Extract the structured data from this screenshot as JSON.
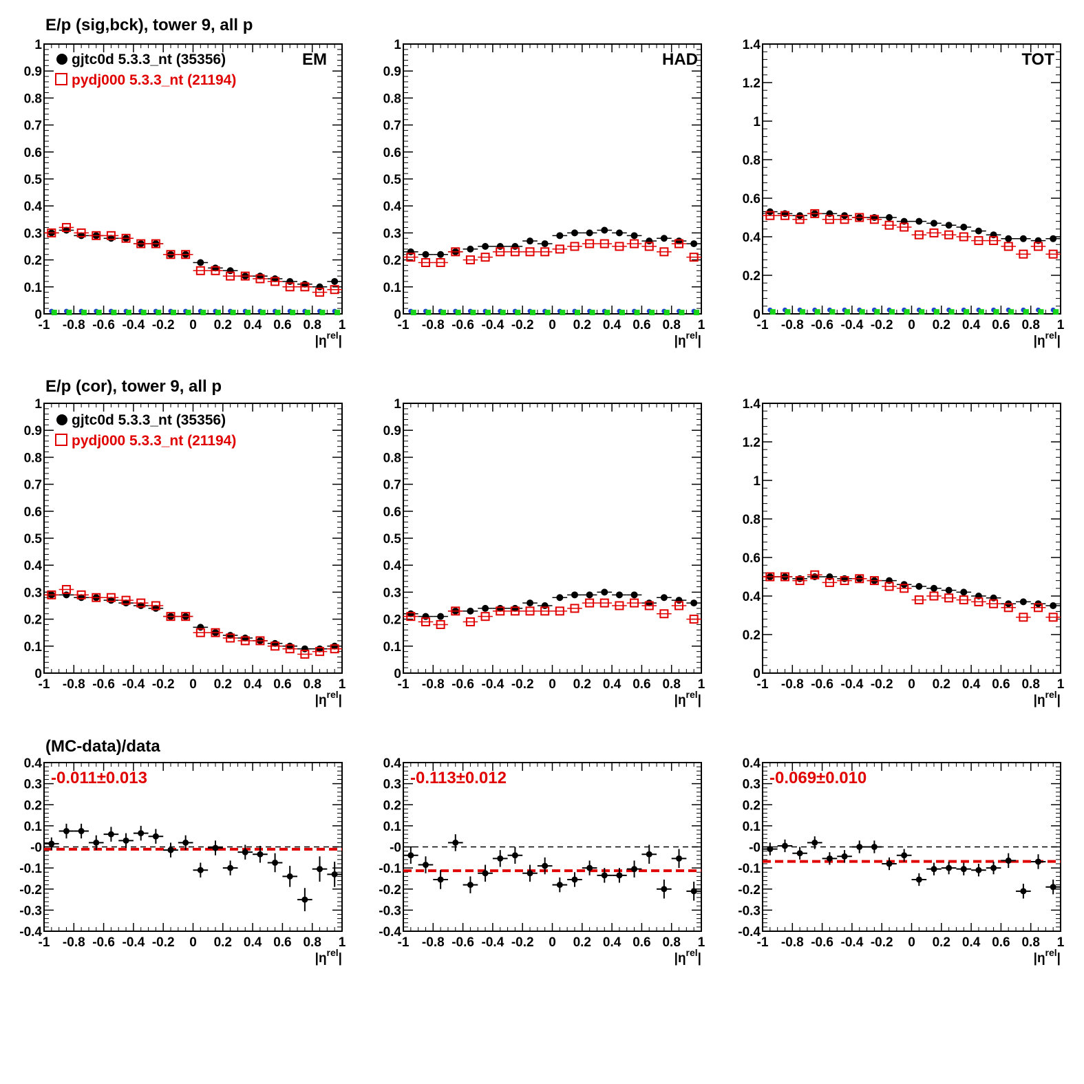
{
  "titles": {
    "row1": "E/p (sig,bck), tower 9, all p",
    "row2": "E/p (cor), tower 9, all p",
    "row3": "(MC-data)/data"
  },
  "legend": {
    "data_label": "gjtc0d 5.3.3_nt (35356)",
    "mc_label": "pydj000 5.3.3_nt (21194)"
  },
  "panel_labels": {
    "em": "EM",
    "had": "HAD",
    "tot": "TOT"
  },
  "xlabel_base": "|η",
  "xlabel_sup": "rel",
  "xlabel_end": "|",
  "colors": {
    "data": "#000000",
    "mc": "#e00000",
    "bkg_a": "#1f3fd0",
    "bkg_b": "#18d418",
    "fit_line": "#e00000",
    "zero_line": "#000000"
  },
  "chart_data": [
    {
      "id": "em_sig",
      "type": "scatter",
      "row": 0,
      "col": 0,
      "xlim": [
        -1,
        1
      ],
      "ylim": [
        0,
        1
      ],
      "yticks": [
        "0",
        "0.1",
        "0.2",
        "0.3",
        "0.4",
        "0.5",
        "0.6",
        "0.7",
        "0.8",
        "0.9",
        "1"
      ],
      "xticks": [
        "-1",
        "-0.8",
        "-0.6",
        "-0.4",
        "-0.2",
        "0",
        "0.2",
        "0.4",
        "0.6",
        "0.8",
        "1"
      ],
      "x": [
        -0.95,
        -0.85,
        -0.75,
        -0.65,
        -0.55,
        -0.45,
        -0.35,
        -0.25,
        -0.15,
        -0.05,
        0.05,
        0.15,
        0.25,
        0.35,
        0.45,
        0.55,
        0.65,
        0.75,
        0.85,
        0.95
      ],
      "series": [
        {
          "name": "gjtc0d 5.3.3_nt (35356)",
          "marker": "filled-circle",
          "values": [
            0.3,
            0.31,
            0.29,
            0.29,
            0.28,
            0.28,
            0.26,
            0.26,
            0.22,
            0.22,
            0.19,
            0.17,
            0.16,
            0.14,
            0.14,
            0.13,
            0.12,
            0.11,
            0.1,
            0.12
          ]
        },
        {
          "name": "pydj000 5.3.3_nt (21194)",
          "marker": "open-square",
          "values": [
            0.3,
            0.32,
            0.3,
            0.29,
            0.29,
            0.28,
            0.26,
            0.26,
            0.22,
            0.22,
            0.16,
            0.16,
            0.14,
            0.14,
            0.13,
            0.12,
            0.1,
            0.1,
            0.08,
            0.09
          ]
        },
        {
          "marker": "blue-circle",
          "values": [
            0.01,
            0.01,
            0.01,
            0.01,
            0.01,
            0.01,
            0.01,
            0.01,
            0.01,
            0.01,
            0.01,
            0.01,
            0.01,
            0.01,
            0.01,
            0.01,
            0.01,
            0.01,
            0.01,
            0.01
          ]
        },
        {
          "marker": "green-square",
          "values": [
            0.005,
            0.005,
            0.005,
            0.005,
            0.005,
            0.005,
            0.005,
            0.005,
            0.005,
            0.005,
            0.005,
            0.005,
            0.005,
            0.005,
            0.005,
            0.005,
            0.005,
            0.005,
            0.005,
            0.005
          ]
        }
      ]
    },
    {
      "id": "had_sig",
      "type": "scatter",
      "row": 0,
      "col": 1,
      "xlim": [
        -1,
        1
      ],
      "ylim": [
        0,
        1
      ],
      "yticks": [
        "0",
        "0.1",
        "0.2",
        "0.3",
        "0.4",
        "0.5",
        "0.6",
        "0.7",
        "0.8",
        "0.9",
        "1"
      ],
      "xticks": [
        "-1",
        "-0.8",
        "-0.6",
        "-0.4",
        "-0.2",
        "0",
        "0.2",
        "0.4",
        "0.6",
        "0.8",
        "1"
      ],
      "x": [
        -0.95,
        -0.85,
        -0.75,
        -0.65,
        -0.55,
        -0.45,
        -0.35,
        -0.25,
        -0.15,
        -0.05,
        0.05,
        0.15,
        0.25,
        0.35,
        0.45,
        0.55,
        0.65,
        0.75,
        0.85,
        0.95
      ],
      "series": [
        {
          "name": "gjtc0d 5.3.3_nt (35356)",
          "marker": "filled-circle",
          "values": [
            0.23,
            0.22,
            0.22,
            0.23,
            0.24,
            0.25,
            0.25,
            0.25,
            0.27,
            0.26,
            0.29,
            0.3,
            0.3,
            0.31,
            0.3,
            0.29,
            0.27,
            0.28,
            0.27,
            0.26
          ]
        },
        {
          "name": "pydj000 5.3.3_nt (21194)",
          "marker": "open-square",
          "values": [
            0.21,
            0.19,
            0.19,
            0.23,
            0.2,
            0.21,
            0.23,
            0.23,
            0.23,
            0.23,
            0.24,
            0.25,
            0.26,
            0.26,
            0.25,
            0.26,
            0.25,
            0.23,
            0.26,
            0.21
          ]
        },
        {
          "marker": "blue-circle",
          "values": [
            0.01,
            0.01,
            0.01,
            0.01,
            0.01,
            0.01,
            0.01,
            0.01,
            0.01,
            0.01,
            0.01,
            0.01,
            0.01,
            0.01,
            0.01,
            0.01,
            0.01,
            0.01,
            0.01,
            0.01
          ]
        },
        {
          "marker": "green-square",
          "values": [
            0.005,
            0.005,
            0.005,
            0.005,
            0.005,
            0.005,
            0.005,
            0.005,
            0.005,
            0.005,
            0.005,
            0.005,
            0.005,
            0.005,
            0.005,
            0.005,
            0.005,
            0.005,
            0.005,
            0.005
          ]
        }
      ]
    },
    {
      "id": "tot_sig",
      "type": "scatter",
      "row": 0,
      "col": 2,
      "xlim": [
        -1,
        1
      ],
      "ylim": [
        0,
        1.4
      ],
      "yticks": [
        "0",
        "0.2",
        "0.4",
        "0.6",
        "0.8",
        "1",
        "1.2",
        "1.4"
      ],
      "xticks": [
        "-1",
        "-0.8",
        "-0.6",
        "-0.4",
        "-0.2",
        "0",
        "0.2",
        "0.4",
        "0.6",
        "0.8",
        "1"
      ],
      "x": [
        -0.95,
        -0.85,
        -0.75,
        -0.65,
        -0.55,
        -0.45,
        -0.35,
        -0.25,
        -0.15,
        -0.05,
        0.05,
        0.15,
        0.25,
        0.35,
        0.45,
        0.55,
        0.65,
        0.75,
        0.85,
        0.95
      ],
      "series": [
        {
          "name": "gjtc0d 5.3.3_nt (35356)",
          "marker": "filled-circle",
          "values": [
            0.53,
            0.52,
            0.51,
            0.52,
            0.52,
            0.51,
            0.5,
            0.5,
            0.5,
            0.48,
            0.48,
            0.47,
            0.46,
            0.45,
            0.43,
            0.41,
            0.39,
            0.39,
            0.38,
            0.39
          ]
        },
        {
          "name": "pydj000 5.3.3_nt (21194)",
          "marker": "open-square",
          "values": [
            0.51,
            0.51,
            0.49,
            0.52,
            0.49,
            0.49,
            0.5,
            0.49,
            0.46,
            0.45,
            0.41,
            0.42,
            0.41,
            0.4,
            0.38,
            0.38,
            0.35,
            0.31,
            0.35,
            0.31
          ]
        },
        {
          "marker": "blue-circle",
          "values": [
            0.02,
            0.02,
            0.02,
            0.02,
            0.02,
            0.02,
            0.02,
            0.02,
            0.02,
            0.02,
            0.02,
            0.02,
            0.02,
            0.02,
            0.02,
            0.02,
            0.02,
            0.02,
            0.02,
            0.02
          ]
        },
        {
          "marker": "green-square",
          "values": [
            0.01,
            0.01,
            0.01,
            0.01,
            0.01,
            0.01,
            0.01,
            0.01,
            0.01,
            0.01,
            0.01,
            0.01,
            0.01,
            0.01,
            0.01,
            0.01,
            0.01,
            0.01,
            0.01,
            0.01
          ]
        }
      ]
    },
    {
      "id": "em_cor",
      "type": "scatter",
      "row": 1,
      "col": 0,
      "xlim": [
        -1,
        1
      ],
      "ylim": [
        0,
        1
      ],
      "yticks": [
        "0",
        "0.1",
        "0.2",
        "0.3",
        "0.4",
        "0.5",
        "0.6",
        "0.7",
        "0.8",
        "0.9",
        "1"
      ],
      "xticks": [
        "-1",
        "-0.8",
        "-0.6",
        "-0.4",
        "-0.2",
        "0",
        "0.2",
        "0.4",
        "0.6",
        "0.8",
        "1"
      ],
      "x": [
        -0.95,
        -0.85,
        -0.75,
        -0.65,
        -0.55,
        -0.45,
        -0.35,
        -0.25,
        -0.15,
        -0.05,
        0.05,
        0.15,
        0.25,
        0.35,
        0.45,
        0.55,
        0.65,
        0.75,
        0.85,
        0.95
      ],
      "series": [
        {
          "name": "gjtc0d 5.3.3_nt (35356)",
          "marker": "filled-circle",
          "values": [
            0.29,
            0.29,
            0.28,
            0.28,
            0.27,
            0.26,
            0.25,
            0.24,
            0.21,
            0.21,
            0.17,
            0.15,
            0.14,
            0.13,
            0.12,
            0.11,
            0.1,
            0.09,
            0.09,
            0.1
          ]
        },
        {
          "name": "pydj000 5.3.3_nt (21194)",
          "marker": "open-square",
          "values": [
            0.29,
            0.31,
            0.29,
            0.28,
            0.28,
            0.27,
            0.26,
            0.25,
            0.21,
            0.21,
            0.15,
            0.15,
            0.13,
            0.12,
            0.12,
            0.1,
            0.09,
            0.07,
            0.08,
            0.09
          ]
        }
      ]
    },
    {
      "id": "had_cor",
      "type": "scatter",
      "row": 1,
      "col": 1,
      "xlim": [
        -1,
        1
      ],
      "ylim": [
        0,
        1
      ],
      "yticks": [
        "0",
        "0.1",
        "0.2",
        "0.3",
        "0.4",
        "0.5",
        "0.6",
        "0.7",
        "0.8",
        "0.9",
        "1"
      ],
      "xticks": [
        "-1",
        "-0.8",
        "-0.6",
        "-0.4",
        "-0.2",
        "0",
        "0.2",
        "0.4",
        "0.6",
        "0.8",
        "1"
      ],
      "x": [
        -0.95,
        -0.85,
        -0.75,
        -0.65,
        -0.55,
        -0.45,
        -0.35,
        -0.25,
        -0.15,
        -0.05,
        0.05,
        0.15,
        0.25,
        0.35,
        0.45,
        0.55,
        0.65,
        0.75,
        0.85,
        0.95
      ],
      "series": [
        {
          "name": "gjtc0d 5.3.3_nt (35356)",
          "marker": "filled-circle",
          "values": [
            0.22,
            0.21,
            0.21,
            0.23,
            0.23,
            0.24,
            0.24,
            0.24,
            0.26,
            0.25,
            0.28,
            0.29,
            0.29,
            0.3,
            0.29,
            0.29,
            0.26,
            0.28,
            0.27,
            0.26
          ]
        },
        {
          "name": "pydj000 5.3.3_nt (21194)",
          "marker": "open-square",
          "values": [
            0.21,
            0.19,
            0.18,
            0.23,
            0.19,
            0.21,
            0.23,
            0.23,
            0.23,
            0.23,
            0.23,
            0.24,
            0.26,
            0.26,
            0.25,
            0.26,
            0.25,
            0.22,
            0.25,
            0.2
          ]
        }
      ]
    },
    {
      "id": "tot_cor",
      "type": "scatter",
      "row": 1,
      "col": 2,
      "xlim": [
        -1,
        1
      ],
      "ylim": [
        0,
        1.4
      ],
      "yticks": [
        "0",
        "0.2",
        "0.4",
        "0.6",
        "0.8",
        "1",
        "1.2",
        "1.4"
      ],
      "xticks": [
        "-1",
        "-0.8",
        "-0.6",
        "-0.4",
        "-0.2",
        "0",
        "0.2",
        "0.4",
        "0.6",
        "0.8",
        "1"
      ],
      "x": [
        -0.95,
        -0.85,
        -0.75,
        -0.65,
        -0.55,
        -0.45,
        -0.35,
        -0.25,
        -0.15,
        -0.05,
        0.05,
        0.15,
        0.25,
        0.35,
        0.45,
        0.55,
        0.65,
        0.75,
        0.85,
        0.95
      ],
      "series": [
        {
          "name": "gjtc0d 5.3.3_nt (35356)",
          "marker": "filled-circle",
          "values": [
            0.5,
            0.5,
            0.49,
            0.5,
            0.5,
            0.49,
            0.49,
            0.48,
            0.48,
            0.46,
            0.45,
            0.44,
            0.43,
            0.42,
            0.4,
            0.39,
            0.36,
            0.37,
            0.36,
            0.35
          ]
        },
        {
          "name": "pydj000 5.3.3_nt (21194)",
          "marker": "open-square",
          "values": [
            0.5,
            0.5,
            0.48,
            0.51,
            0.47,
            0.48,
            0.49,
            0.48,
            0.45,
            0.44,
            0.38,
            0.4,
            0.39,
            0.38,
            0.37,
            0.36,
            0.34,
            0.29,
            0.34,
            0.29
          ]
        }
      ]
    },
    {
      "id": "em_ratio",
      "type": "scatter",
      "row": 2,
      "col": 0,
      "xlim": [
        -1,
        1
      ],
      "ylim": [
        -0.4,
        0.4
      ],
      "yticks": [
        "-0.4",
        "-0.3",
        "-0.2",
        "-0.1",
        "-0",
        "0.1",
        "0.2",
        "0.3",
        "0.4"
      ],
      "xticks": [
        "-1",
        "-0.8",
        "-0.6",
        "-0.4",
        "-0.2",
        "0",
        "0.2",
        "0.4",
        "0.6",
        "0.8",
        "1"
      ],
      "fit_text": "-0.011±0.013",
      "fit_value": -0.011,
      "x": [
        -0.95,
        -0.85,
        -0.75,
        -0.65,
        -0.55,
        -0.45,
        -0.35,
        -0.25,
        -0.15,
        -0.05,
        0.05,
        0.15,
        0.25,
        0.35,
        0.45,
        0.55,
        0.65,
        0.75,
        0.85,
        0.95
      ],
      "values": [
        0.015,
        0.075,
        0.075,
        0.02,
        0.06,
        0.03,
        0.065,
        0.05,
        -0.015,
        0.02,
        -0.11,
        -0.005,
        -0.1,
        -0.025,
        -0.035,
        -0.075,
        -0.14,
        -0.25,
        -0.105,
        -0.13
      ],
      "errors": [
        0.03,
        0.035,
        0.035,
        0.035,
        0.035,
        0.035,
        0.035,
        0.035,
        0.035,
        0.035,
        0.035,
        0.035,
        0.035,
        0.035,
        0.04,
        0.045,
        0.05,
        0.055,
        0.06,
        0.06
      ]
    },
    {
      "id": "had_ratio",
      "type": "scatter",
      "row": 2,
      "col": 1,
      "xlim": [
        -1,
        1
      ],
      "ylim": [
        -0.4,
        0.4
      ],
      "yticks": [
        "-0.4",
        "-0.3",
        "-0.2",
        "-0.1",
        "-0",
        "0.1",
        "0.2",
        "0.3",
        "0.4"
      ],
      "xticks": [
        "-1",
        "-0.8",
        "-0.6",
        "-0.4",
        "-0.2",
        "0",
        "0.2",
        "0.4",
        "0.6",
        "0.8",
        "1"
      ],
      "fit_text": "-0.113±0.012",
      "fit_value": -0.113,
      "x": [
        -0.95,
        -0.85,
        -0.75,
        -0.65,
        -0.55,
        -0.45,
        -0.35,
        -0.25,
        -0.15,
        -0.05,
        0.05,
        0.15,
        0.25,
        0.35,
        0.45,
        0.55,
        0.65,
        0.75,
        0.85,
        0.95
      ],
      "values": [
        -0.04,
        -0.085,
        -0.155,
        0.02,
        -0.18,
        -0.125,
        -0.055,
        -0.04,
        -0.125,
        -0.09,
        -0.18,
        -0.155,
        -0.1,
        -0.135,
        -0.135,
        -0.105,
        -0.035,
        -0.2,
        -0.055,
        -0.21
      ],
      "errors": [
        0.04,
        0.04,
        0.045,
        0.04,
        0.04,
        0.04,
        0.04,
        0.04,
        0.04,
        0.04,
        0.035,
        0.035,
        0.035,
        0.035,
        0.035,
        0.04,
        0.045,
        0.045,
        0.045,
        0.045
      ]
    },
    {
      "id": "tot_ratio",
      "type": "scatter",
      "row": 2,
      "col": 2,
      "xlim": [
        -1,
        1
      ],
      "ylim": [
        -0.4,
        0.4
      ],
      "yticks": [
        "-0.4",
        "-0.3",
        "-0.2",
        "-0.1",
        "-0",
        "0.1",
        "0.2",
        "0.3",
        "0.4"
      ],
      "xticks": [
        "-1",
        "-0.8",
        "-0.6",
        "-0.4",
        "-0.2",
        "0",
        "0.2",
        "0.4",
        "0.6",
        "0.8",
        "1"
      ],
      "fit_text": "-0.069±0.010",
      "fit_value": -0.069,
      "x": [
        -0.95,
        -0.85,
        -0.75,
        -0.65,
        -0.55,
        -0.45,
        -0.35,
        -0.25,
        -0.15,
        -0.05,
        0.05,
        0.15,
        0.25,
        0.35,
        0.45,
        0.55,
        0.65,
        0.75,
        0.85,
        0.95
      ],
      "values": [
        -0.01,
        0.005,
        -0.03,
        0.02,
        -0.055,
        -0.045,
        0.0,
        0.0,
        -0.08,
        -0.04,
        -0.155,
        -0.105,
        -0.1,
        -0.105,
        -0.11,
        -0.1,
        -0.065,
        -0.21,
        -0.07,
        -0.19
      ],
      "errors": [
        0.03,
        0.03,
        0.03,
        0.03,
        0.03,
        0.03,
        0.03,
        0.03,
        0.03,
        0.03,
        0.03,
        0.03,
        0.03,
        0.03,
        0.03,
        0.03,
        0.035,
        0.035,
        0.035,
        0.035
      ]
    }
  ]
}
